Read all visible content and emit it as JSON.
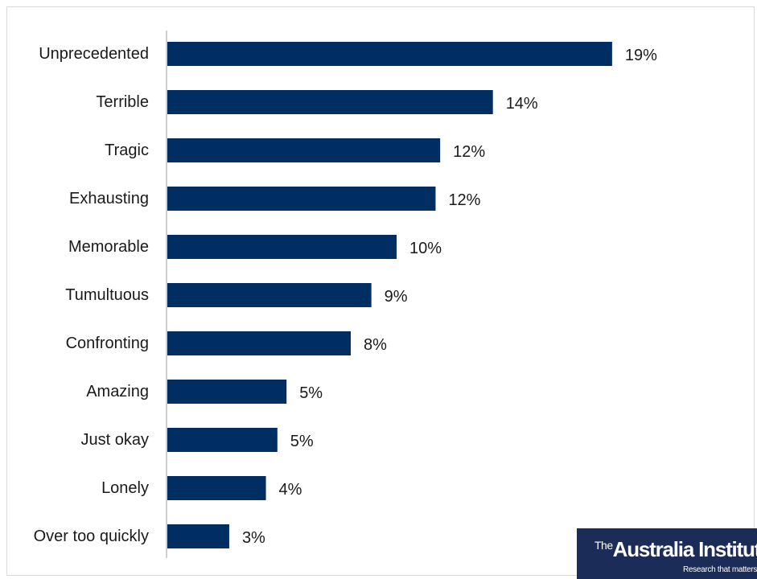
{
  "chart_data": {
    "type": "bar",
    "orientation": "horizontal",
    "categories": [
      "Unprecedented",
      "Terrible",
      "Tragic",
      "Exhausting",
      "Memorable",
      "Tumultuous",
      "Confronting",
      "Amazing",
      "Just okay",
      "Lonely",
      "Over too quickly"
    ],
    "values": [
      19,
      14,
      12,
      12,
      10,
      9,
      8,
      5,
      5,
      4,
      3
    ],
    "value_labels": [
      "19%",
      "14%",
      "12%",
      "12%",
      "10%",
      "9%",
      "8%",
      "5%",
      "5%",
      "4%",
      "3%"
    ],
    "bar_values_precise": [
      19.4,
      14.2,
      11.9,
      11.7,
      10.0,
      8.9,
      8.0,
      5.2,
      4.8,
      4.3,
      2.7
    ],
    "xlim": [
      0,
      20
    ],
    "grid": false,
    "bar_color": "#002d62",
    "title": "",
    "xlabel": "",
    "ylabel": ""
  },
  "logo": {
    "prefix": "The",
    "name": "Australia Institute",
    "tagline": "Research that matters",
    "background": "#1c2c59"
  }
}
